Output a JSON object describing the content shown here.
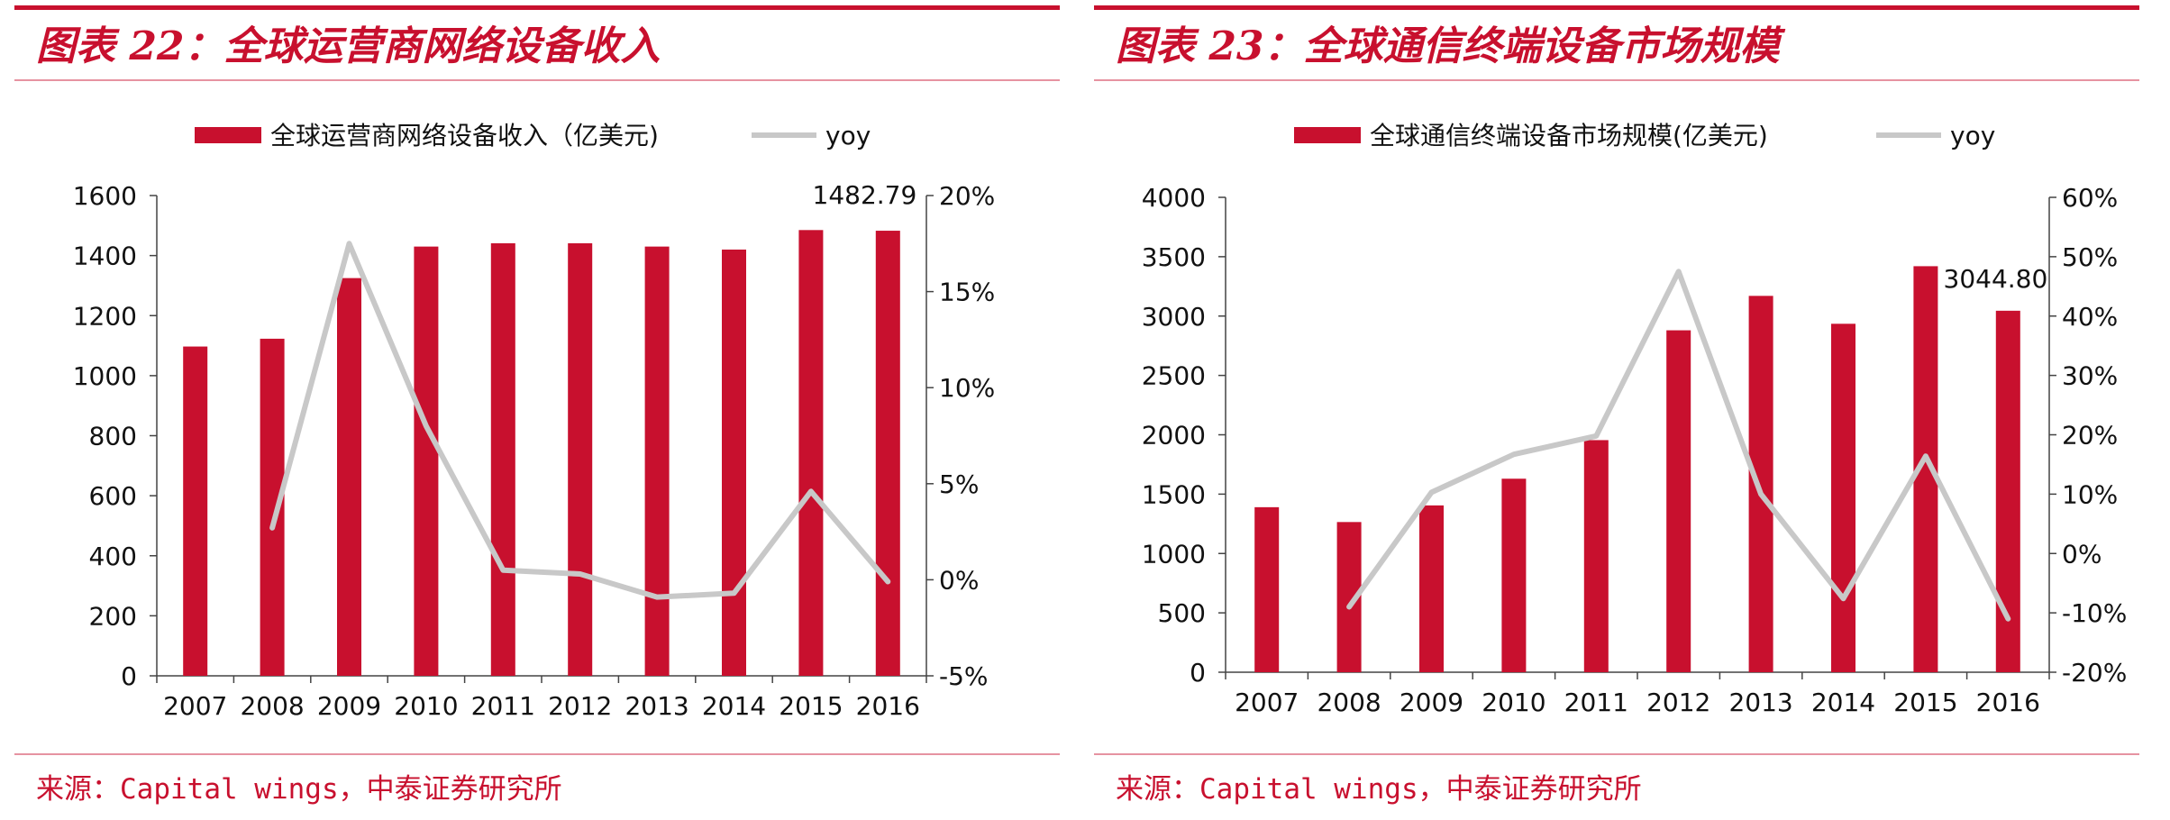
{
  "colors": {
    "accent": "#c8102e",
    "bar": "#c8102e",
    "line": "#c8c8c8"
  },
  "charts": [
    {
      "title": "图表 22：全球运营商网络设备收入",
      "source": "来源：Capital wings，中泰证券研究所"
    },
    {
      "title": "图表 23：全球通信终端设备市场规模",
      "source": "来源：Capital wings，中泰证券研究所"
    }
  ],
  "chart_data": [
    {
      "type": "bar",
      "categories": [
        "2007",
        "2008",
        "2009",
        "2010",
        "2011",
        "2012",
        "2013",
        "2014",
        "2015",
        "2016"
      ],
      "series": [
        {
          "name": "全球运营商网络设备收入（亿美元)",
          "kind": "bar",
          "axis": "left",
          "values": [
            1097,
            1123,
            1325,
            1430,
            1441,
            1441,
            1430,
            1420,
            1485,
            1482.79
          ]
        },
        {
          "name": "yoy",
          "kind": "line",
          "axis": "right",
          "values": [
            null,
            2.7,
            17.5,
            8.0,
            0.5,
            0.3,
            -0.9,
            -0.7,
            4.6,
            -0.1
          ]
        }
      ],
      "ylim": [
        0,
        1600
      ],
      "yticks": [
        "0",
        "200",
        "400",
        "600",
        "800",
        "1000",
        "1200",
        "1400",
        "1600"
      ],
      "y2lim": [
        -5,
        20
      ],
      "y2ticks": [
        "-5%",
        "0%",
        "5%",
        "10%",
        "15%",
        "20%"
      ],
      "annotations": [
        {
          "category": "2016",
          "text": "1482.79"
        }
      ],
      "legend": "top-center",
      "grid": false
    },
    {
      "type": "bar",
      "categories": [
        "2007",
        "2008",
        "2009",
        "2010",
        "2011",
        "2012",
        "2013",
        "2014",
        "2015",
        "2016"
      ],
      "series": [
        {
          "name": "全球通信终端设备市场规模(亿美元)",
          "kind": "bar",
          "axis": "left",
          "values": [
            1390,
            1265,
            1405,
            1630,
            1955,
            2880,
            3170,
            2935,
            3420,
            3044.8
          ]
        },
        {
          "name": "yoy",
          "kind": "line",
          "axis": "right",
          "values": [
            null,
            -9.0,
            10.3,
            16.7,
            19.8,
            47.5,
            10.0,
            -7.6,
            16.4,
            -11.0
          ]
        }
      ],
      "ylim": [
        0,
        4000
      ],
      "yticks": [
        "0",
        "500",
        "1000",
        "1500",
        "2000",
        "2500",
        "3000",
        "3500",
        "4000"
      ],
      "y2lim": [
        -20,
        60
      ],
      "y2ticks": [
        "-20%",
        "-10%",
        "0%",
        "10%",
        "20%",
        "30%",
        "40%",
        "50%",
        "60%"
      ],
      "annotations": [
        {
          "category": "2016",
          "text": "3044.80"
        }
      ],
      "legend": "top-center",
      "grid": false
    }
  ]
}
